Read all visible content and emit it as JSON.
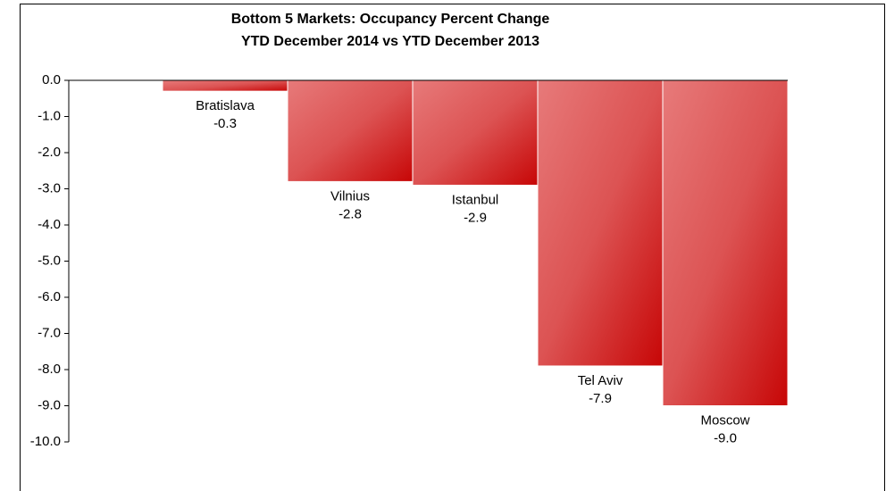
{
  "chart_data": {
    "type": "bar",
    "title": "Bottom 5 Markets: Occupancy Percent Change",
    "subtitle": "YTD December 2014 vs YTD December 2013",
    "categories": [
      "Bratislava",
      "Vilnius",
      "Istanbul",
      "Tel Aviv",
      "Moscow"
    ],
    "values": [
      -0.3,
      -2.8,
      -2.9,
      -7.9,
      -9.0
    ],
    "value_labels": [
      "-0.3",
      "-2.8",
      "-2.9",
      "-7.9",
      "-9.0"
    ],
    "color": "#d42a2a",
    "ylim": [
      -10,
      0
    ],
    "yticks": [
      {
        "value": 0,
        "label": "0.0"
      },
      {
        "value": -1,
        "label": "-1.0"
      },
      {
        "value": -2,
        "label": "-2.0"
      },
      {
        "value": -3,
        "label": "-3.0"
      },
      {
        "value": -4,
        "label": "-4.0"
      },
      {
        "value": -5,
        "label": "-5.0"
      },
      {
        "value": -6,
        "label": "-6.0"
      },
      {
        "value": -7,
        "label": "-7.0"
      },
      {
        "value": -8,
        "label": "-8.0"
      },
      {
        "value": -9,
        "label": "-9.0"
      },
      {
        "value": -10,
        "label": "-10.0"
      }
    ],
    "grid": false
  }
}
